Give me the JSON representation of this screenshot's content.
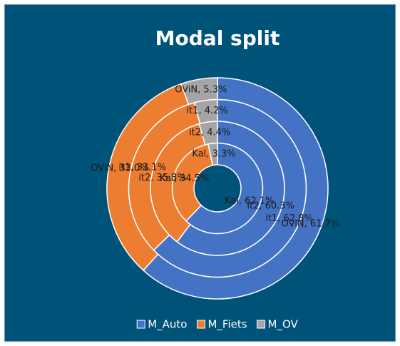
{
  "chart_data": {
    "type": "multi_donut",
    "title": "Modal split",
    "categories": [
      "Kal",
      "it2",
      "it1",
      "OViN"
    ],
    "series": [
      {
        "name": "M_Auto",
        "color": "#4472c4",
        "values": [
          62.1,
          60.3,
          62.8,
          61.7
        ],
        "value_labels": [
          "Kal, 62.1%",
          "it2, 60.3%",
          "it1, 62.8%",
          "OViN, 61.7%"
        ]
      },
      {
        "name": "M_Fiets",
        "color": "#ed7d31",
        "values": [
          34.5,
          35.3,
          33.1,
          33.0
        ],
        "value_labels": [
          "Kal, 34.5%",
          "it2, 35.3%",
          "it1, 33.1%",
          "OViN, 33.0%"
        ]
      },
      {
        "name": "M_OV",
        "color": "#a5a5a5",
        "values": [
          3.3,
          4.4,
          4.2,
          5.3
        ],
        "value_labels": [
          "Kal, 3.3%",
          "it2, 4.4%",
          "it1, 4.2%",
          "OViN, 5.3%"
        ]
      }
    ],
    "legend": "bottom"
  }
}
